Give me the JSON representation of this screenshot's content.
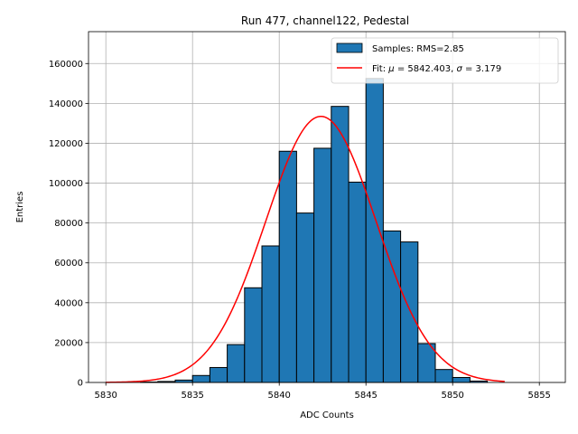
{
  "chart_data": {
    "type": "bar",
    "title": "Run 477, channel122, Pedestal",
    "xlabel": "ADC Counts",
    "ylabel": "Entries",
    "xlim": [
      5829,
      5856.5
    ],
    "ylim": [
      0,
      176000
    ],
    "xticks": [
      5830,
      5835,
      5840,
      5845,
      5850,
      5855
    ],
    "yticks": [
      0,
      20000,
      40000,
      60000,
      80000,
      100000,
      120000,
      140000,
      160000
    ],
    "grid": true,
    "legend_position": "top-right",
    "histogram": {
      "name": "Samples: RMS=2.85",
      "bin_width": 1,
      "bin_left_edges": [
        5832,
        5833,
        5834,
        5835,
        5836,
        5837,
        5838,
        5839,
        5840,
        5841,
        5842,
        5843,
        5844,
        5845,
        5846,
        5847,
        5848,
        5849,
        5850,
        5851
      ],
      "values": [
        200,
        500,
        1200,
        3500,
        7500,
        19000,
        47500,
        68500,
        116000,
        85000,
        117500,
        138500,
        100500,
        152500,
        76000,
        70500,
        19500,
        6500,
        2500,
        700
      ],
      "color": "#1f77b4"
    },
    "fit": {
      "label_prefix": "Fit: ",
      "mu_symbol": "μ",
      "mu_text": " = 5842.403, ",
      "sigma_symbol": "σ",
      "sigma_text": " = 3.179",
      "mu": 5842.403,
      "sigma": 3.179,
      "amplitude": 133500,
      "x_range": [
        5830,
        5853
      ],
      "color": "#ff0000"
    }
  }
}
